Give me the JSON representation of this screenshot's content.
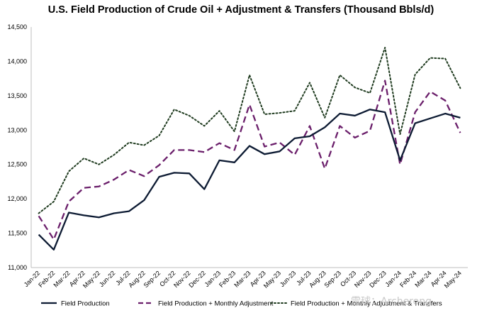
{
  "chart_data": {
    "type": "line",
    "title": "U.S. Field Production of Crude Oil + Adjustment & Transfers (Thousand Bbls/d)",
    "xlabel": "",
    "ylabel": "",
    "ylim": [
      11000,
      14500
    ],
    "yticks": [
      11000,
      11500,
      12000,
      12500,
      13000,
      13500,
      14000,
      14500
    ],
    "ytick_labels": [
      "11,000",
      "11,500",
      "12,000",
      "12,500",
      "13,000",
      "13,500",
      "14,000",
      "14,500"
    ],
    "grid": false,
    "legend_position": "bottom",
    "categories": [
      "Jan-22",
      "Feb-22",
      "Mar-22",
      "Apr-22",
      "May-22",
      "Jun-22",
      "Jul-22",
      "Aug-22",
      "Sep-22",
      "Oct-22",
      "Nov-22",
      "Dec-22",
      "Jan-23",
      "Feb-23",
      "Mar-23",
      "Apr-23",
      "May-23",
      "Jun-23",
      "Jul-23",
      "Aug-23",
      "Sep-23",
      "Oct-23",
      "Nov-23",
      "Dec-23",
      "Jan-24",
      "Feb-24",
      "Mar-24",
      "Apr-24",
      "May-24"
    ],
    "series": [
      {
        "name": "Field Production",
        "style": "solid",
        "color": "#0d1b33",
        "values": [
          11480,
          11260,
          11800,
          11760,
          11730,
          11790,
          11820,
          11980,
          12320,
          12380,
          12370,
          12140,
          12560,
          12530,
          12770,
          12650,
          12690,
          12880,
          12910,
          13040,
          13240,
          13210,
          13300,
          13260,
          12560,
          13100,
          13170,
          13240,
          13180
        ]
      },
      {
        "name": "Field Production + Monthly Adjustment",
        "style": "dashed",
        "color": "#6b1f6b",
        "values": [
          11750,
          11410,
          11960,
          12160,
          12180,
          12280,
          12420,
          12330,
          12490,
          12710,
          12710,
          12680,
          12810,
          12710,
          13370,
          12760,
          12820,
          12640,
          13060,
          12440,
          13060,
          12890,
          12990,
          13720,
          12500,
          13260,
          13560,
          13430,
          12960
        ]
      },
      {
        "name": "Field Production + Monthly Adjustment & Transfers",
        "style": "dotted",
        "color": "#1f3b1f",
        "values": [
          11790,
          11960,
          12400,
          12590,
          12500,
          12640,
          12820,
          12780,
          12920,
          13300,
          13210,
          13060,
          13280,
          12980,
          13800,
          13230,
          13250,
          13280,
          13690,
          13180,
          13800,
          13620,
          13540,
          14200,
          12940,
          13810,
          14050,
          14040,
          13610
        ]
      }
    ]
  },
  "watermark": "雪球：Archerong"
}
